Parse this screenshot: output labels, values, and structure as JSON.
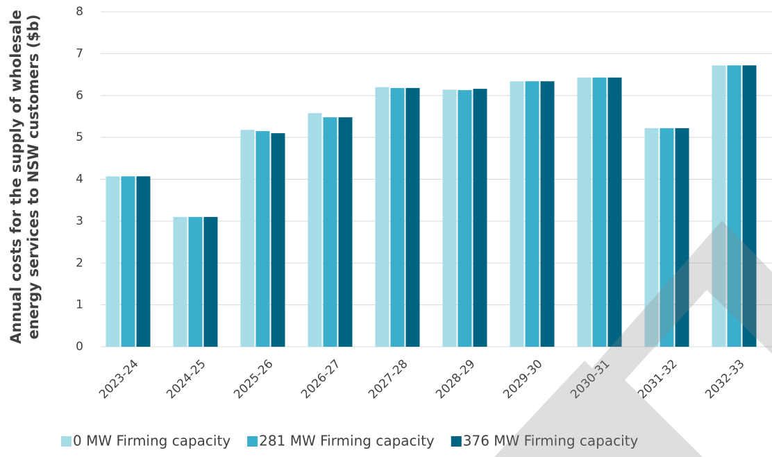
{
  "chart_data": {
    "type": "bar",
    "ylabel": [
      "Annual costs for the supply of wholesale",
      "energy services to NSW customers ($b)"
    ],
    "categories": [
      "2023-24",
      "2024-25",
      "2025-26",
      "2026-27",
      "2027-28",
      "2028-29",
      "2029-30",
      "2030-31",
      "2031-32",
      "2032-33"
    ],
    "series": [
      {
        "name": "0 MW Firming capacity",
        "color": "#a6dce6",
        "values": [
          4.07,
          3.1,
          5.18,
          5.58,
          6.2,
          6.14,
          6.34,
          6.43,
          5.22,
          6.72
        ]
      },
      {
        "name": "281 MW Firming capacity",
        "color": "#3aaecb",
        "values": [
          4.07,
          3.1,
          5.15,
          5.48,
          6.18,
          6.13,
          6.34,
          6.43,
          5.22,
          6.72
        ]
      },
      {
        "name": "376 MW Firming capacity",
        "color": "#006382",
        "values": [
          4.07,
          3.1,
          5.1,
          5.48,
          6.18,
          6.16,
          6.34,
          6.43,
          5.22,
          6.72
        ]
      }
    ],
    "ylim": [
      0,
      8
    ],
    "yticks": [
      0,
      1,
      2,
      3,
      4,
      5,
      6,
      7,
      8
    ],
    "grid": true,
    "legend": "bottom"
  }
}
